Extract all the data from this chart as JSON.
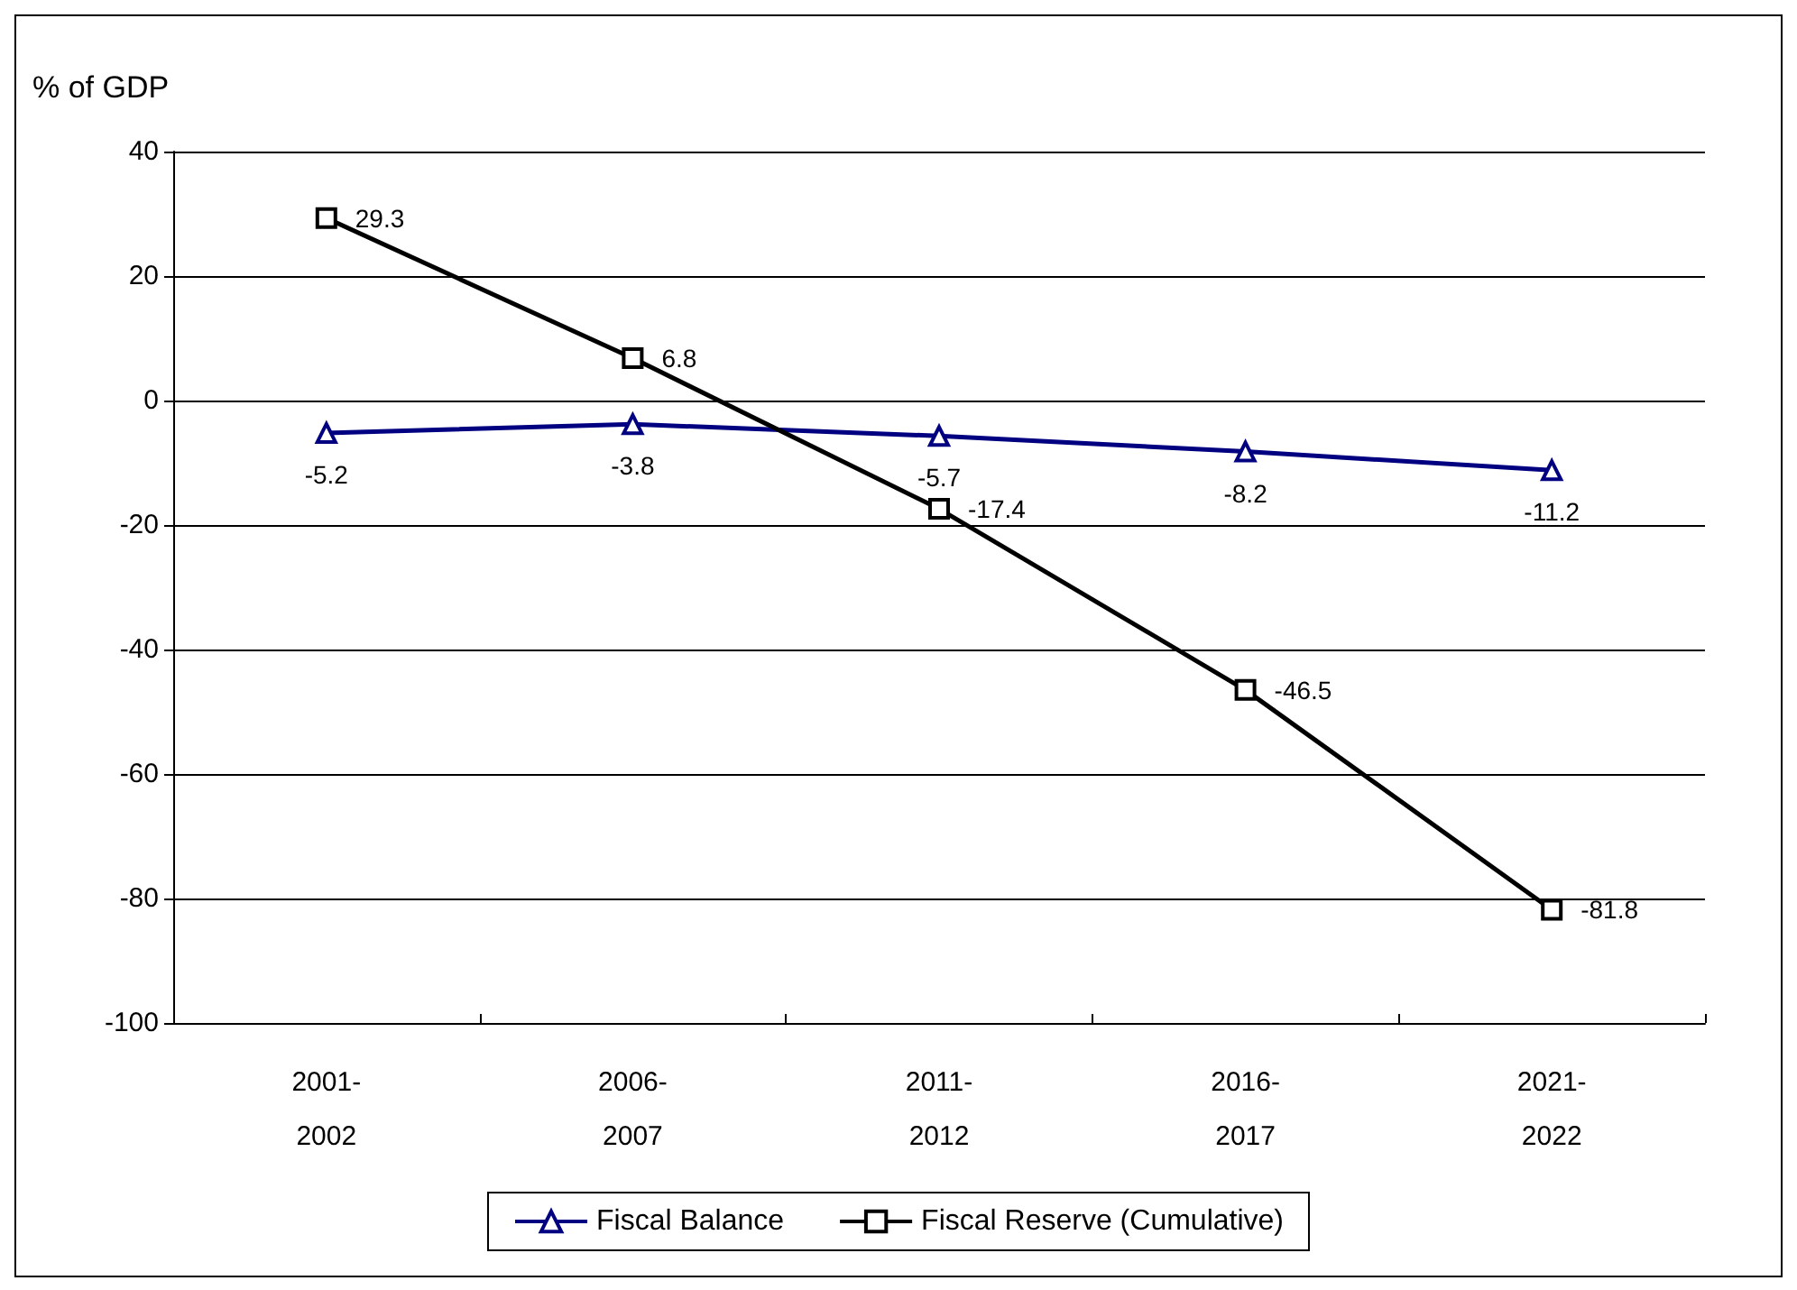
{
  "chart_data": {
    "type": "line",
    "ylabel": "% of GDP",
    "categories": [
      "2001-2002",
      "2006-2007",
      "2011-2012",
      "2016-2017",
      "2021-2022"
    ],
    "series": [
      {
        "name": "Fiscal Balance",
        "color": "#000080",
        "marker": "triangle",
        "values": [
          -5.2,
          -3.8,
          -5.7,
          -8.2,
          -11.2
        ]
      },
      {
        "name": "Fiscal Reserve (Cumulative)",
        "color": "#000000",
        "marker": "square",
        "values": [
          29.3,
          6.8,
          -17.4,
          -46.5,
          -81.8
        ]
      }
    ],
    "ylim": [
      -100,
      40
    ],
    "yticks": [
      -100,
      -80,
      -60,
      -40,
      -20,
      0,
      20,
      40
    ],
    "grid": "y",
    "legend": "bottom",
    "data_labels": true,
    "line_style": "solid"
  }
}
